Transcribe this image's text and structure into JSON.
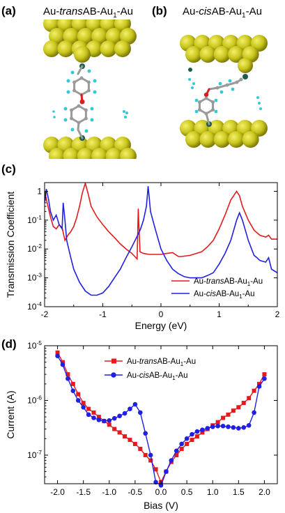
{
  "panels": {
    "a": {
      "label": "(a)",
      "title_pre": "Au-",
      "title_ital": "trans",
      "title_mid": "AB-Au",
      "title_sub": "1",
      "title_post": "-Au"
    },
    "b": {
      "label": "(b)",
      "title_pre": "Au-",
      "title_ital": "cis",
      "title_mid": "AB-Au",
      "title_sub": "1",
      "title_post": "-Au"
    },
    "c": {
      "label": "(c)"
    },
    "d": {
      "label": "(d)"
    }
  },
  "colors": {
    "gold": "#c9c51c",
    "gold_dark": "#8f8b10",
    "red": "#e41a1c",
    "blue": "#1f1fe6",
    "carbon": "#9a9a9a",
    "oxygen": "#d42020",
    "hydrogen": "#33c9d6",
    "sulfur": "#1f5b4f"
  },
  "chart_data": [
    {
      "type": "line",
      "panel": "c",
      "xlabel": "Energy (eV)",
      "ylabel": "Transmission Coefficient",
      "xlim": [
        -2,
        2
      ],
      "ylim": [
        0.0001,
        2
      ],
      "yscale": "log",
      "xticks": [
        "-2",
        "-1",
        "0",
        "1",
        "2"
      ],
      "yticks": [
        "1",
        "10-1",
        "10-2",
        "10-3",
        "10-4"
      ],
      "legend_position": "bottom-right",
      "series": [
        {
          "name": "Au-transAB-Au1-Au",
          "legend": {
            "pre": "Au-",
            "ital": "trans",
            "mid": "AB-Au",
            "sub": "1",
            "post": "-Au"
          },
          "color": "#e41a1c",
          "x": [
            -2.0,
            -1.95,
            -1.9,
            -1.85,
            -1.8,
            -1.75,
            -1.7,
            -1.65,
            -1.6,
            -1.55,
            -1.5,
            -1.45,
            -1.4,
            -1.35,
            -1.3,
            -1.25,
            -1.2,
            -1.1,
            -1.0,
            -0.9,
            -0.8,
            -0.7,
            -0.6,
            -0.5,
            -0.45,
            -0.41,
            -0.39,
            -0.36,
            -0.3,
            -0.2,
            -0.1,
            0.0,
            0.1,
            0.2,
            0.3,
            0.35,
            0.5,
            0.7,
            0.8,
            0.9,
            1.0,
            1.1,
            1.2,
            1.3,
            1.35,
            1.4,
            1.5,
            1.6,
            1.7,
            1.8,
            1.85,
            1.9,
            2.0
          ],
          "y": [
            1.0,
            0.35,
            0.13,
            0.06,
            0.05,
            0.07,
            0.055,
            0.02,
            0.03,
            0.04,
            0.06,
            0.12,
            0.3,
            0.9,
            1.9,
            0.8,
            0.3,
            0.13,
            0.07,
            0.04,
            0.025,
            0.015,
            0.01,
            0.007,
            0.0055,
            0.0045,
            0.25,
            0.008,
            0.007,
            0.0065,
            0.0065,
            0.0065,
            0.007,
            0.0075,
            0.0055,
            0.0055,
            0.006,
            0.008,
            0.012,
            0.02,
            0.05,
            0.15,
            0.5,
            1.0,
            0.7,
            0.3,
            0.1,
            0.045,
            0.03,
            0.026,
            0.03,
            0.022,
            0.022
          ]
        },
        {
          "name": "Au-cisAB-Au1-Au",
          "legend": {
            "pre": "Au-",
            "ital": "cis",
            "mid": "AB-Au",
            "sub": "1",
            "post": "-Au"
          },
          "color": "#1f1fe6",
          "x": [
            -2.0,
            -1.97,
            -1.93,
            -1.9,
            -1.85,
            -1.8,
            -1.75,
            -1.7,
            -1.68,
            -1.65,
            -1.62,
            -1.55,
            -1.5,
            -1.4,
            -1.3,
            -1.2,
            -1.1,
            -1.0,
            -0.9,
            -0.8,
            -0.7,
            -0.6,
            -0.5,
            -0.4,
            -0.35,
            -0.3,
            -0.25,
            -0.22,
            -0.18,
            -0.1,
            0.0,
            0.1,
            0.2,
            0.3,
            0.4,
            0.5,
            0.6,
            0.7,
            0.8,
            0.9,
            1.0,
            1.1,
            1.2,
            1.3,
            1.35,
            1.4,
            1.5,
            1.6,
            1.65,
            1.7,
            1.8,
            1.85,
            1.9,
            2.0
          ],
          "y": [
            0.4,
            1.2,
            0.5,
            0.2,
            0.1,
            0.15,
            0.07,
            0.05,
            0.4,
            0.1,
            0.02,
            0.005,
            0.002,
            0.0007,
            0.00035,
            0.00025,
            0.00025,
            0.0003,
            0.0005,
            0.001,
            0.002,
            0.005,
            0.012,
            0.03,
            0.05,
            0.1,
            0.3,
            1.5,
            0.2,
            0.05,
            0.01,
            0.004,
            0.002,
            0.0014,
            0.0011,
            0.001,
            0.001,
            0.001,
            0.0012,
            0.0015,
            0.003,
            0.007,
            0.02,
            0.1,
            0.18,
            0.1,
            0.02,
            0.006,
            0.005,
            0.004,
            0.0035,
            0.005,
            0.002,
            0.0015
          ]
        }
      ]
    },
    {
      "type": "line",
      "panel": "d",
      "xlabel": "Bias (V)",
      "ylabel": "Current (A)",
      "xlim": [
        -2.25,
        2.25
      ],
      "ylim": [
        3e-08,
        1e-05
      ],
      "yscale": "log",
      "xticks": [
        "-2.0",
        "-1.5",
        "-1.0",
        "-0.5",
        "0.0",
        "0.5",
        "1.0",
        "1.5",
        "2.0"
      ],
      "yticks": [
        "10-5",
        "10-6",
        "10-7"
      ],
      "legend_position": "top-center",
      "series": [
        {
          "name": "Au-transAB-Au1-Au",
          "legend": {
            "pre": "Au-",
            "ital": "trans",
            "mid": "AB-Au",
            "sub": "1",
            "post": "-Au"
          },
          "color": "#e41a1c",
          "marker": "square",
          "x": [
            -2.0,
            -1.9,
            -1.8,
            -1.7,
            -1.6,
            -1.5,
            -1.4,
            -1.3,
            -1.2,
            -1.1,
            -1.0,
            -0.9,
            -0.8,
            -0.7,
            -0.6,
            -0.5,
            -0.4,
            -0.3,
            -0.2,
            -0.1,
            0.0,
            0.1,
            0.2,
            0.3,
            0.4,
            0.5,
            0.6,
            0.7,
            0.8,
            0.9,
            1.0,
            1.1,
            1.2,
            1.3,
            1.4,
            1.5,
            1.6,
            1.7,
            1.8,
            1.9,
            2.0
          ],
          "y": [
            7.5e-06,
            5e-06,
            3e-06,
            2e-06,
            1.3e-06,
            9e-07,
            7e-07,
            6e-07,
            5e-07,
            4.2e-07,
            3.6e-07,
            3e-07,
            2.6e-07,
            2.2e-07,
            1.9e-07,
            1.6e-07,
            1.3e-07,
            1e-07,
            8e-08,
            5.5e-08,
            3.2e-08,
            5e-08,
            7.5e-08,
            1e-07,
            1.3e-07,
            1.6e-07,
            1.9e-07,
            2.2e-07,
            2.6e-07,
            3e-07,
            3.5e-07,
            4e-07,
            4.8e-07,
            5.5e-07,
            6.5e-07,
            7.5e-07,
            9e-07,
            1.1e-06,
            1.5e-06,
            2e-06,
            3e-06
          ]
        },
        {
          "name": "Au-cisAB-Au1-Au",
          "legend": {
            "pre": "Au-",
            "ital": "cis",
            "mid": "AB-Au",
            "sub": "1",
            "post": "-Au"
          },
          "color": "#1f1fe6",
          "marker": "circle",
          "x": [
            -2.0,
            -1.9,
            -1.8,
            -1.7,
            -1.6,
            -1.5,
            -1.4,
            -1.3,
            -1.2,
            -1.1,
            -1.0,
            -0.9,
            -0.8,
            -0.7,
            -0.6,
            -0.5,
            -0.4,
            -0.3,
            -0.2,
            -0.1,
            0.0,
            0.1,
            0.2,
            0.3,
            0.4,
            0.5,
            0.6,
            0.7,
            0.8,
            0.9,
            1.0,
            1.1,
            1.2,
            1.3,
            1.4,
            1.5,
            1.6,
            1.7,
            1.8,
            1.9,
            2.0
          ],
          "y": [
            6.5e-06,
            4.5e-06,
            2.5e-06,
            1.5e-06,
            1e-06,
            7.5e-07,
            5.5e-07,
            4.8e-07,
            4.4e-07,
            4.2e-07,
            4.3e-07,
            4.7e-07,
            5.2e-07,
            5.8e-07,
            7e-07,
            8.5e-07,
            6e-07,
            2.5e-07,
            1e-07,
            3.2e-08,
            2.8e-08,
            5e-08,
            8e-08,
            1.2e-07,
            1.6e-07,
            2e-07,
            2.4e-07,
            2.7e-07,
            2.9e-07,
            3.1e-07,
            3.3e-07,
            3.4e-07,
            3.4e-07,
            3.3e-07,
            3.2e-07,
            3.1e-07,
            3.2e-07,
            3.5e-07,
            6e-07,
            1.8e-06,
            2.5e-06
          ]
        }
      ]
    }
  ]
}
